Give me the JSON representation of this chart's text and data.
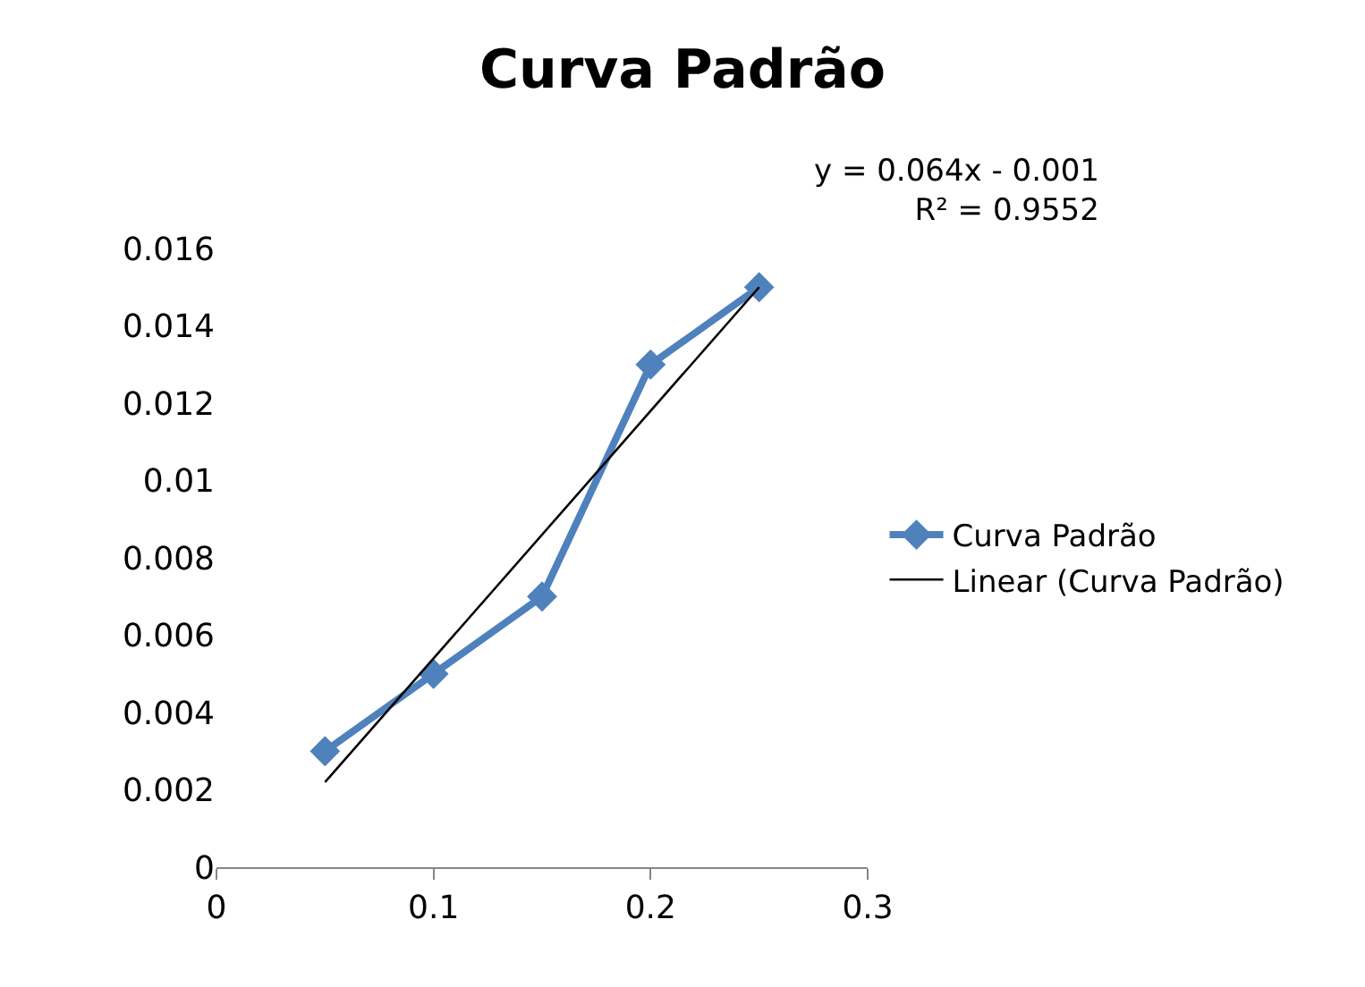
{
  "chart_data": {
    "type": "line",
    "title": "Curva Padrão",
    "annotations": [
      "y = 0.064x - 0.001\nR² = 0.9552"
    ],
    "x": [
      0.05,
      0.1,
      0.15,
      0.2,
      0.25
    ],
    "series": [
      {
        "name": "Curva Padrão",
        "color": "#4f81bd",
        "values": [
          0.003,
          0.005,
          0.007,
          0.013,
          0.015
        ],
        "marker": "diamond",
        "line_style": "solid"
      },
      {
        "name": "Linear (Curva Padrão)",
        "type": "line",
        "color": "#000000",
        "x": [
          0.05,
          0.25
        ],
        "values": [
          0.0022,
          0.015
        ],
        "marker": "none",
        "line_style": "solid"
      }
    ],
    "xlim": [
      0,
      0.3
    ],
    "xticks": [
      0,
      0.1,
      0.2,
      0.3
    ],
    "ylim": [
      0,
      0.016
    ],
    "yticks": [
      0,
      0.002,
      0.004,
      0.006,
      0.008,
      0.01,
      0.012,
      0.014,
      0.016
    ],
    "legend": "right"
  }
}
